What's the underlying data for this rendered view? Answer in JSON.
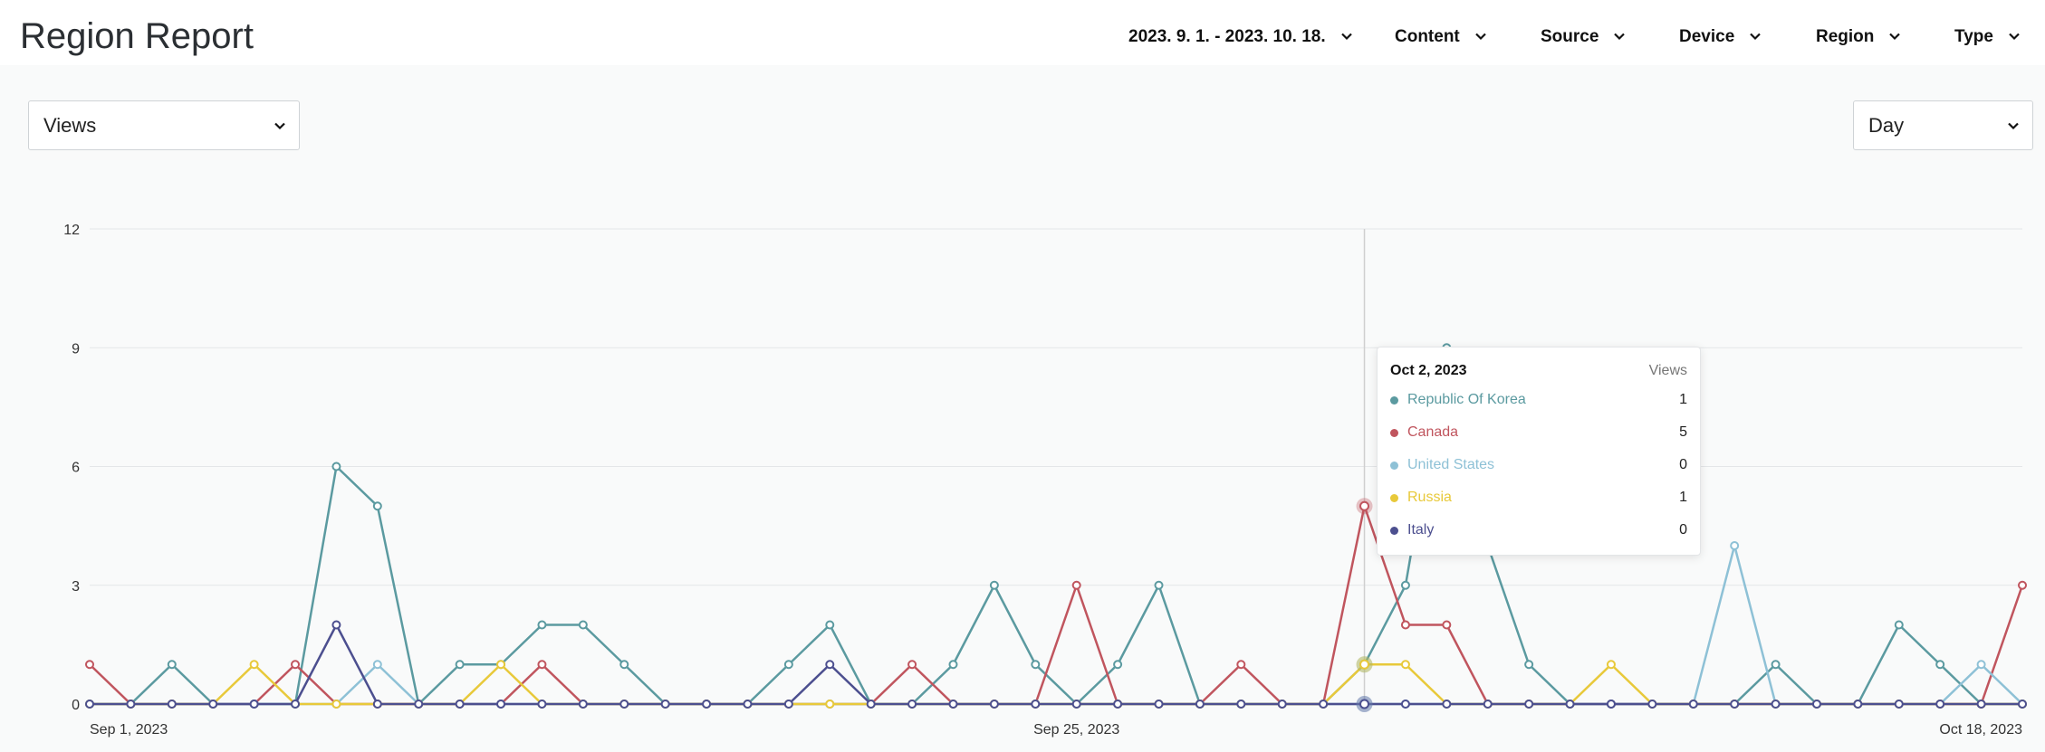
{
  "header": {
    "title": "Region Report",
    "filters": [
      {
        "label": "2023. 9. 1. - 2023. 10. 18."
      },
      {
        "label": "Content"
      },
      {
        "label": "Source"
      },
      {
        "label": "Device"
      },
      {
        "label": "Region"
      },
      {
        "label": "Type"
      }
    ]
  },
  "controls": {
    "metric_select": "Views",
    "interval_select": "Day"
  },
  "tooltip": {
    "date": "Oct 2, 2023",
    "metric": "Views",
    "rows": [
      {
        "name": "Republic Of Korea",
        "value": "1",
        "color": "#5b9aa0"
      },
      {
        "name": "Canada",
        "value": "5",
        "color": "#c0555e"
      },
      {
        "name": "United States",
        "value": "0",
        "color": "#8ec1d6"
      },
      {
        "name": "Russia",
        "value": "1",
        "color": "#e8c93a"
      },
      {
        "name": "Italy",
        "value": "0",
        "color": "#4c4f8f"
      }
    ]
  },
  "chart_data": {
    "type": "line",
    "x_labels": [
      "Sep 1, 2023",
      "Sep 25, 2023",
      "Oct 18, 2023"
    ],
    "x": [
      "Sep 1, 2023",
      "Sep 2, 2023",
      "Sep 3, 2023",
      "Sep 4, 2023",
      "Sep 5, 2023",
      "Sep 6, 2023",
      "Sep 7, 2023",
      "Sep 8, 2023",
      "Sep 9, 2023",
      "Sep 10, 2023",
      "Sep 11, 2023",
      "Sep 12, 2023",
      "Sep 13, 2023",
      "Sep 14, 2023",
      "Sep 15, 2023",
      "Sep 16, 2023",
      "Sep 17, 2023",
      "Sep 18, 2023",
      "Sep 19, 2023",
      "Sep 20, 2023",
      "Sep 21, 2023",
      "Sep 22, 2023",
      "Sep 23, 2023",
      "Sep 24, 2023",
      "Sep 25, 2023",
      "Sep 26, 2023",
      "Sep 27, 2023",
      "Sep 28, 2023",
      "Sep 29, 2023",
      "Sep 30, 2023",
      "Oct 1, 2023",
      "Oct 2, 2023",
      "Oct 3, 2023",
      "Oct 4, 2023",
      "Oct 5, 2023",
      "Oct 6, 2023",
      "Oct 7, 2023",
      "Oct 8, 2023",
      "Oct 9, 2023",
      "Oct 10, 2023",
      "Oct 11, 2023",
      "Oct 12, 2023",
      "Oct 13, 2023",
      "Oct 14, 2023",
      "Oct 15, 2023",
      "Oct 16, 2023",
      "Oct 17, 2023",
      "Oct 18, 2023"
    ],
    "yticks": [
      0,
      3,
      6,
      9,
      12
    ],
    "ylim": [
      0,
      12
    ],
    "grid": true,
    "highlight_x": "Oct 2, 2023",
    "series": [
      {
        "name": "Republic Of Korea",
        "color": "#5b9aa0",
        "values": [
          0,
          0,
          1,
          0,
          0,
          0,
          6,
          5,
          0,
          1,
          1,
          2,
          2,
          1,
          0,
          0,
          0,
          1,
          2,
          0,
          0,
          1,
          3,
          1,
          0,
          1,
          3,
          0,
          0,
          0,
          0,
          1,
          3,
          9,
          4,
          1,
          0,
          0,
          0,
          0,
          0,
          1,
          0,
          0,
          2,
          1,
          0,
          0
        ]
      },
      {
        "name": "Canada",
        "color": "#c0555e",
        "values": [
          1,
          0,
          0,
          0,
          0,
          1,
          0,
          0,
          0,
          0,
          0,
          1,
          0,
          0,
          0,
          0,
          0,
          0,
          0,
          0,
          1,
          0,
          0,
          0,
          3,
          0,
          0,
          0,
          1,
          0,
          0,
          5,
          2,
          2,
          0,
          0,
          0,
          0,
          0,
          0,
          0,
          0,
          0,
          0,
          0,
          0,
          0,
          3
        ]
      },
      {
        "name": "United States",
        "color": "#8ec1d6",
        "values": [
          0,
          0,
          0,
          0,
          0,
          0,
          0,
          1,
          0,
          0,
          0,
          0,
          0,
          0,
          0,
          0,
          0,
          0,
          0,
          0,
          0,
          0,
          0,
          0,
          0,
          0,
          0,
          0,
          0,
          0,
          0,
          0,
          0,
          0,
          0,
          0,
          0,
          0,
          0,
          0,
          4,
          0,
          0,
          0,
          0,
          0,
          1,
          0
        ]
      },
      {
        "name": "Russia",
        "color": "#e8c93a",
        "values": [
          0,
          0,
          0,
          0,
          1,
          0,
          0,
          0,
          0,
          0,
          1,
          0,
          0,
          0,
          0,
          0,
          0,
          0,
          0,
          0,
          0,
          0,
          0,
          0,
          0,
          0,
          0,
          0,
          0,
          0,
          0,
          1,
          1,
          0,
          0,
          0,
          0,
          1,
          0,
          0,
          0,
          0,
          0,
          0,
          0,
          0,
          0,
          0
        ]
      },
      {
        "name": "Italy",
        "color": "#4c4f8f",
        "values": [
          0,
          0,
          0,
          0,
          0,
          0,
          2,
          0,
          0,
          0,
          0,
          0,
          0,
          0,
          0,
          0,
          0,
          0,
          1,
          0,
          0,
          0,
          0,
          0,
          0,
          0,
          0,
          0,
          0,
          0,
          0,
          0,
          0,
          0,
          0,
          0,
          0,
          0,
          0,
          0,
          0,
          0,
          0,
          0,
          0,
          0,
          0,
          0
        ]
      }
    ]
  }
}
